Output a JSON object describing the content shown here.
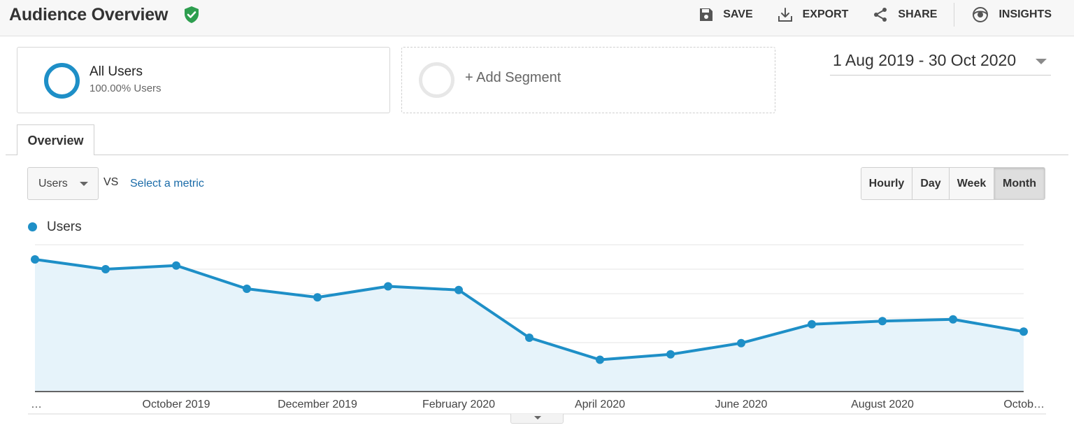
{
  "header": {
    "title": "Audience Overview",
    "actions": {
      "save": "SAVE",
      "export": "EXPORT",
      "share": "SHARE",
      "insights": "INSIGHTS"
    }
  },
  "segments": {
    "all_users": {
      "name": "All Users",
      "sub": "100.00% Users"
    },
    "add_segment": "+ Add Segment"
  },
  "date_range": "1 Aug 2019 - 30 Oct 2020",
  "tabs": [
    {
      "label": "Overview"
    }
  ],
  "metric": {
    "selected": "Users",
    "vs": "VS",
    "select_metric": "Select a metric"
  },
  "granularity": {
    "options": [
      "Hourly",
      "Day",
      "Week",
      "Month"
    ],
    "active": "Month"
  },
  "legend": {
    "series_name": "Users"
  },
  "colors": {
    "series": "#1e8fc7",
    "area": "#e6f3fa",
    "brand_shield": "#2e9e4f"
  },
  "chart_data": {
    "type": "area",
    "x": [
      "Aug 2019",
      "Sep 2019",
      "Oct 2019",
      "Nov 2019",
      "Dec 2019",
      "Jan 2020",
      "Feb 2020",
      "Mar 2020",
      "Apr 2020",
      "May 2020",
      "Jun 2020",
      "Jul 2020",
      "Aug 2020",
      "Sep 2020",
      "Oct 2020"
    ],
    "series": [
      {
        "name": "Users",
        "values": [
          5.4,
          5.0,
          5.15,
          4.2,
          3.85,
          4.3,
          4.15,
          2.2,
          1.3,
          1.52,
          1.98,
          2.75,
          2.88,
          2.95,
          2.45
        ]
      }
    ],
    "tick_labels": [
      "…",
      "October 2019",
      "December 2019",
      "February 2020",
      "April 2020",
      "June 2020",
      "August 2020",
      "Octob…"
    ],
    "ylim": [
      0,
      6
    ],
    "grid": true
  }
}
